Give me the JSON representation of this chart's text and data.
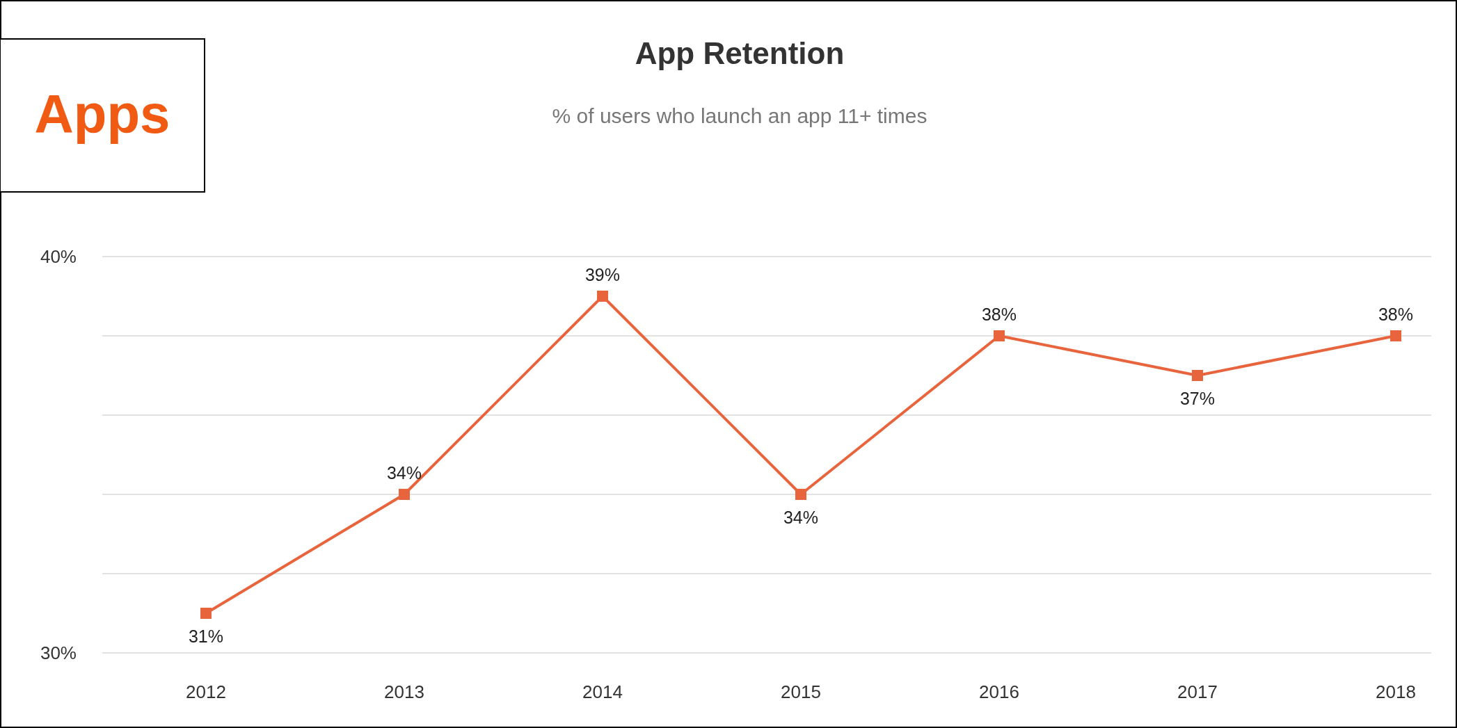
{
  "chart_data": {
    "type": "line",
    "title": "App Retention",
    "subtitle": "% of users who launch an app 11+ times",
    "annotations": [
      "Apps"
    ],
    "categories": [
      "2012",
      "2013",
      "2014",
      "2015",
      "2016",
      "2017",
      "2018"
    ],
    "series": [
      {
        "color": "#e8643c",
        "values": [
          31,
          34,
          39,
          34,
          38,
          37,
          38
        ],
        "value_labels": [
          "31%",
          "34%",
          "39%",
          "34%",
          "38%",
          "37%",
          "38%"
        ]
      }
    ],
    "ylim": [
      30,
      40
    ],
    "yticks": [
      {
        "value": 30,
        "label": "30%"
      },
      {
        "value": 32,
        "label": null
      },
      {
        "value": 34,
        "label": null
      },
      {
        "value": 36,
        "label": null
      },
      {
        "value": 38,
        "label": null
      },
      {
        "value": 40,
        "label": "40%"
      }
    ],
    "grid": "y",
    "marker": "square",
    "line_style": "solid"
  }
}
